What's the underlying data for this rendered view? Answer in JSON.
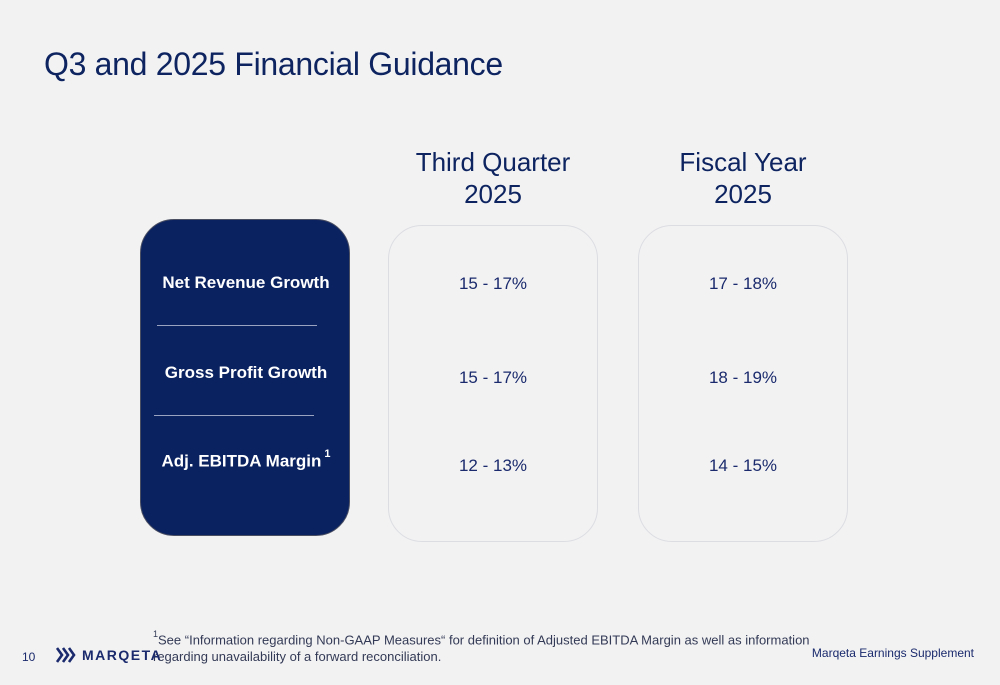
{
  "title": "Q3 and 2025 Financial Guidance",
  "columns": [
    {
      "line1": "Third Quarter",
      "line2": "2025"
    },
    {
      "line1": "Fiscal Year",
      "line2": "2025"
    }
  ],
  "metrics": [
    {
      "label": "Net Revenue Growth",
      "footnote_mark": "",
      "q3": "15 - 17%",
      "fy": "17 - 18%"
    },
    {
      "label": "Gross Profit Growth",
      "footnote_mark": "",
      "q3": "15 - 17%",
      "fy": "18 - 19%"
    },
    {
      "label": "Adj. EBITDA Margin",
      "footnote_mark": "1",
      "q3": "12 - 13%",
      "fy": "14 - 15%"
    }
  ],
  "footnote": {
    "mark": "1",
    "text": "See “Information regarding Non-GAAP Measures“ for definition of Adjusted EBITDA Margin as well as information regarding unavailability of a forward reconciliation."
  },
  "footer": {
    "page_number": "10",
    "logo_text": "MARQETA",
    "logo_icon": "marqeta-chevrons-icon",
    "document_name": "Marqeta Earnings Supplement"
  },
  "colors": {
    "navy": "#0b2260",
    "text": "#1a2a6c",
    "background": "#f2f2f3"
  }
}
